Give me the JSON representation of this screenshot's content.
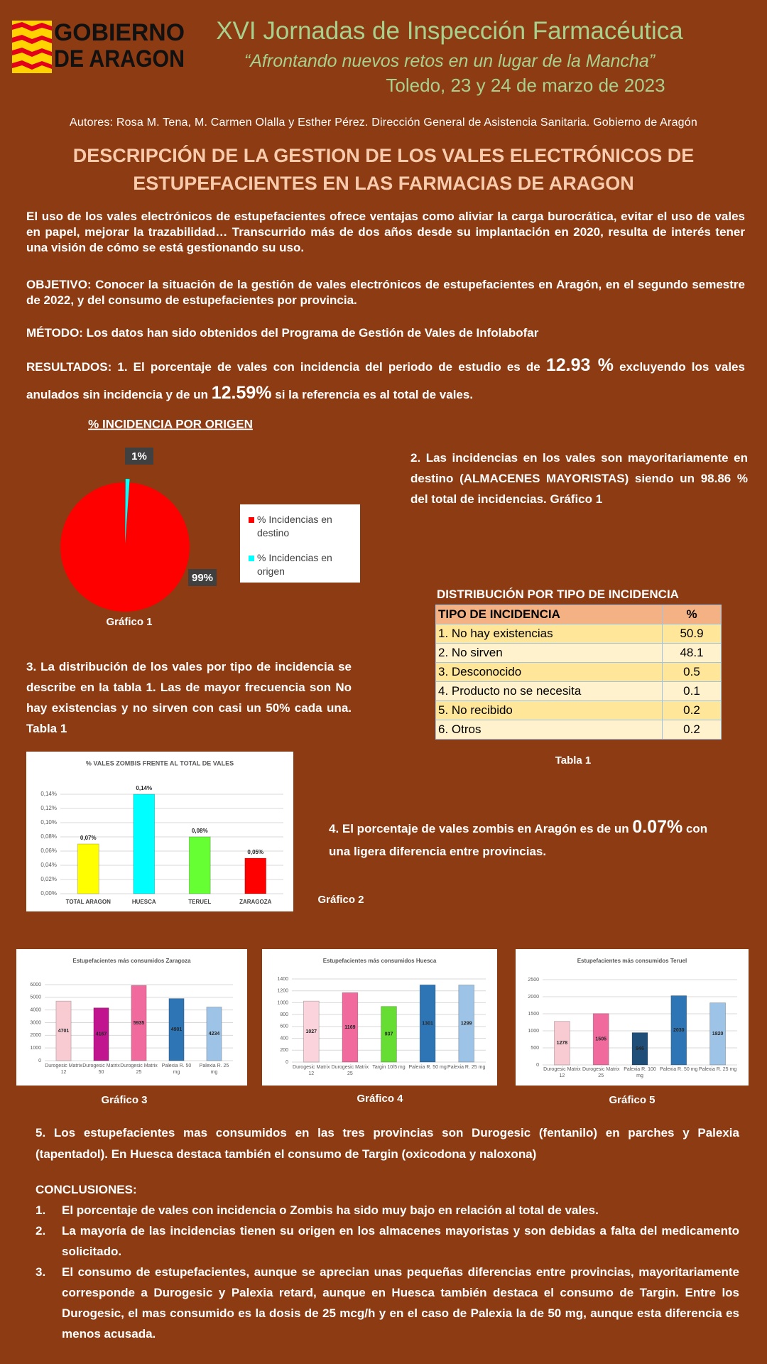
{
  "logo": {
    "line1": "GOBIERNO",
    "line2": "DE ARAGON"
  },
  "header": {
    "title": "XVI Jornadas de Inspección Farmacéutica",
    "subtitle": "“Afrontando nuevos retos en un lugar de la Mancha”",
    "date": "Toledo, 23 y 24 de marzo de 2023",
    "authors": "Autores: Rosa M. Tena, M. Carmen Olalla y Esther Pérez. Dirección General de Asistencia Sanitaria. Gobierno de Aragón",
    "main_title": "DESCRIPCIÓN DE LA GESTION DE LOS VALES ELECTRÓNICOS DE ESTUPEFACIENTES EN LAS FARMACIAS DE ARAGON"
  },
  "intro": "El uso de los vales electrónicos de estupefacientes ofrece ventajas como aliviar la carga burocrática, evitar el uso de vales en papel, mejorar la trazabilidad… Transcurrido más de dos años desde su implantación en 2020, resulta de interés tener una visión de cómo se está gestionando su uso.",
  "objetivo": "OBJETIVO: Conocer la situación de la gestión de vales electrónicos de estupefacientes en Aragón, en el segundo semestre de 2022, y del consumo de estupefacientes por provincia.",
  "metodo": "MÉTODO: Los datos han sido obtenidos del Programa de Gestión de Vales de Infolabofar",
  "resultados": {
    "text1": "RESULTADOS: 1. El porcentaje de vales con incidencia del periodo de estudio es de",
    "value1": "12.93 %",
    "text2": "excluyendo los vales anulados sin incidencia y de un",
    "value2": "12.59%",
    "text3": "si la referencia es al total de vales."
  },
  "item2": "2. Las incidencias en los vales son mayoritariamente en destino (ALMACENES MAYORISTAS) siendo un 98.86 % del total de incidencias. Gráfico 1",
  "item3": "3. La distribución de los vales por tipo de incidencia se describe en la tabla 1. Las de mayor frecuencia son No hay existencias y no sirven con casi un 50% cada una. Tabla 1",
  "item4": {
    "text1": "4. El porcentaje de vales zombis en Aragón es de un",
    "value": "0.07%",
    "text2": "con una ligera diferencia entre provincias."
  },
  "item5": "5. Los estupefacientes mas consumidos en las tres provincias son Durogesic (fentanilo) en parches y Palexia (tapentadol). En Huesca destaca también el consumo de Targin (oxicodona y naloxona)",
  "table": {
    "title": "DISTRIBUCIÓN POR TIPO DE INCIDENCIA",
    "header": [
      "TIPO DE INCIDENCIA",
      "%"
    ],
    "rows": [
      [
        "1. No hay existencias",
        "50.9"
      ],
      [
        "2. No sirven",
        "48.1"
      ],
      [
        "3. Desconocido",
        "0.5"
      ],
      [
        "4. Producto no se necesita",
        "0.1"
      ],
      [
        "5. No recibido",
        "0.2"
      ],
      [
        "6. Otros",
        "0.2"
      ]
    ],
    "caption": "Tabla 1"
  },
  "conclusions": {
    "title": "CONCLUSIONES:",
    "items": [
      {
        "number": "1.",
        "text": "El porcentaje de vales con incidencia o Zombis ha sido muy bajo en relación al total de vales."
      },
      {
        "number": "2.",
        "text": "La mayoría de las incidencias tienen su origen en los almacenes mayoristas y son debidas a falta del medicamento solicitado."
      },
      {
        "number": "3.",
        "text": "El consumo de estupefacientes, aunque se aprecian unas pequeñas diferencias entre provincias, mayoritariamente corresponde a Durogesic y Palexia retard, aunque en Huesca también destaca el consumo de Targin. Entre los Durogesic, el mas consumido es la dosis de 25 mcg/h y en el caso de Palexia la de 50 mg, aunque esta diferencia es menos acusada."
      }
    ]
  },
  "chart_data": [
    {
      "type": "pie",
      "title": "% INCIDENCIA POR ORIGEN",
      "caption": "Gráfico 1",
      "categories": [
        "% Incidencias en destino",
        "% Incidencias en origen"
      ],
      "values": [
        99,
        1
      ],
      "value_labels": [
        "99%",
        "1%"
      ],
      "colors": [
        "#ff0000",
        "#00ffff"
      ]
    },
    {
      "type": "bar",
      "title": "% VALES ZOMBIS FRENTE AL TOTAL DE VALES",
      "caption": "Gráfico 2",
      "categories": [
        "TOTAL ARAGON",
        "HUESCA",
        "TERUEL",
        "ZARAGOZA"
      ],
      "values": [
        0.07,
        0.14,
        0.08,
        0.05
      ],
      "value_labels": [
        "0,07%",
        "0,14%",
        "0,08%",
        "0,05%"
      ],
      "colors": [
        "#ffff00",
        "#00ffff",
        "#66ff33",
        "#ff0000"
      ],
      "ylim": [
        0,
        0.14
      ],
      "yticks": [
        {
          "value": 0,
          "label": "0,00%"
        },
        {
          "value": 0.02,
          "label": "0,02%"
        },
        {
          "value": 0.04,
          "label": "0,04%"
        },
        {
          "value": 0.06,
          "label": "0,06%"
        },
        {
          "value": 0.08,
          "label": "0,08%"
        },
        {
          "value": 0.1,
          "label": "0,10%"
        },
        {
          "value": 0.12,
          "label": "0,12%"
        },
        {
          "value": 0.14,
          "label": "0,14%"
        }
      ],
      "grid": true
    },
    {
      "type": "bar",
      "title": "Estupefacientes más consumidos Zaragoza",
      "caption": "Gráfico 3",
      "categories": [
        "Durogesic Matrix 12",
        "Durogesic Matrix 50",
        "Durogesic Matrix 25",
        "Palexia R. 50 mg",
        "Palexia R. 25 mg"
      ],
      "values": [
        4701,
        4167,
        5935,
        4901,
        4234
      ],
      "colors": [
        "#f8cbd3",
        "#c0158e",
        "#f06a9e",
        "#2e75b6",
        "#9dc3e6"
      ],
      "ylim": [
        0,
        6000
      ],
      "yticks": [
        0,
        1000,
        2000,
        3000,
        4000,
        5000,
        6000
      ],
      "grid": true
    },
    {
      "type": "bar",
      "title": "Estupefacientes más consumidos Huesca",
      "caption": "Gráfico 4",
      "categories": [
        "Durogesic Matrix 12",
        "Durogesic Matrix 25",
        "Targin 10/5 mg",
        "Palexia R. 50 mg",
        "Palexia R. 25 mg"
      ],
      "values": [
        1027,
        1169,
        937,
        1301,
        1299
      ],
      "colors": [
        "#fbd3dc",
        "#f06a9e",
        "#66dd33",
        "#2e75b6",
        "#9dc3e6"
      ],
      "ylim": [
        0,
        1400
      ],
      "yticks": [
        0,
        200,
        400,
        600,
        800,
        1000,
        1200,
        1400
      ],
      "grid": true
    },
    {
      "type": "bar",
      "title": "Estupefacientes más consumidos Teruel",
      "caption": "Gráfico 5",
      "categories": [
        "Durogesic Matrix 12",
        "Durogesic Matrix 25",
        "Palexia R. 100 mg",
        "Palexia R. 50 mg",
        "Palexia R. 25 mg"
      ],
      "values": [
        1278,
        1505,
        946,
        2030,
        1820
      ],
      "colors": [
        "#f8cbd3",
        "#f06a9e",
        "#1f4e79",
        "#2e75b6",
        "#9dc3e6"
      ],
      "ylim": [
        0,
        2500
      ],
      "yticks": [
        0,
        500,
        1000,
        1500,
        2000,
        2500
      ],
      "grid": true
    }
  ]
}
